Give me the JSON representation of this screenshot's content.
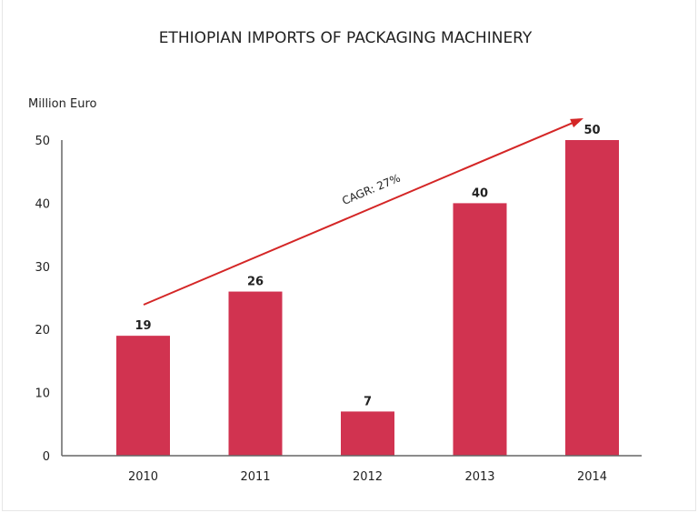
{
  "chart_data": {
    "type": "bar",
    "title": "ETHIOPIAN IMPORTS OF PACKAGING MACHINERY",
    "ylabel": "Million Euro",
    "xlabel": "",
    "categories": [
      "2010",
      "2011",
      "2012",
      "2013",
      "2014"
    ],
    "values": [
      19,
      26,
      7,
      40,
      50
    ],
    "data_labels": [
      "19",
      "26",
      "7",
      "40",
      "50"
    ],
    "ylim": [
      0,
      50
    ],
    "yticks": [
      0,
      10,
      20,
      30,
      40,
      50
    ],
    "grid": false,
    "annotation": {
      "text": "CAGR: 27%",
      "type": "arrow",
      "from_category": "2010",
      "to_category": "2014"
    },
    "colors": {
      "bar": "#d13350",
      "arrow": "#d42626",
      "axis": "#666666"
    }
  }
}
